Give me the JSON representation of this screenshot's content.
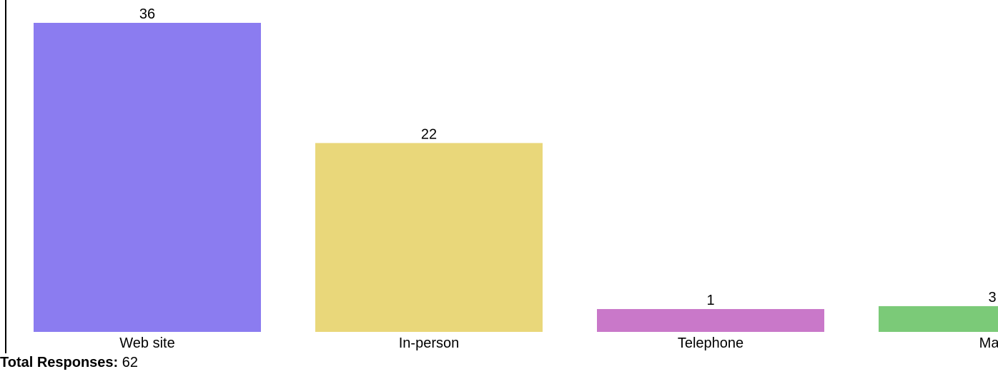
{
  "chart_data": {
    "type": "bar",
    "categories": [
      "Web site",
      "In-person",
      "Telephone",
      "Mail"
    ],
    "values": [
      36,
      22,
      1,
      3
    ],
    "colors": [
      "#8b7cf0",
      "#e9d77a",
      "#c978c9",
      "#7bca78"
    ]
  },
  "footer": {
    "label": "Total Responses:",
    "value": 62
  }
}
